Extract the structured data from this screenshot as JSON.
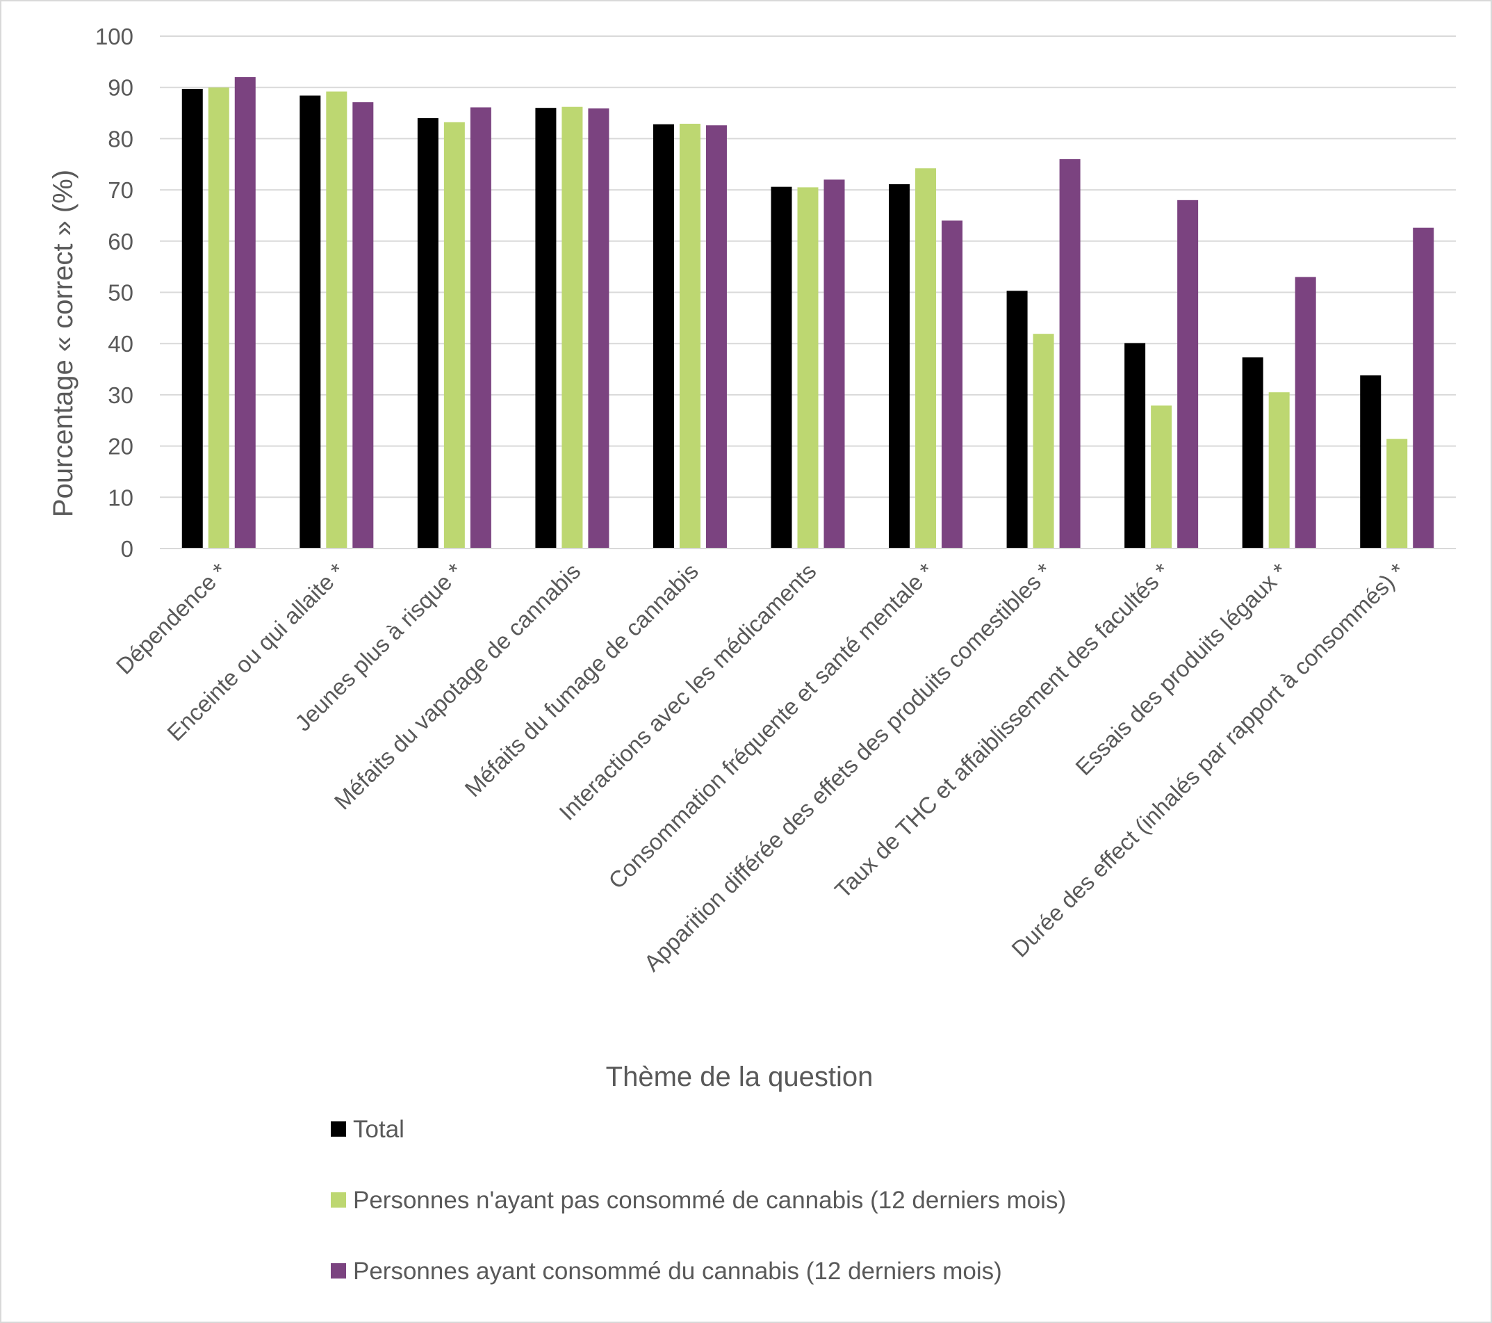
{
  "chart_data": {
    "type": "bar",
    "title": "",
    "xlabel": "Thème de la question",
    "ylabel": "Pourcentage « correct » (%)",
    "ylim": [
      0,
      100
    ],
    "yticks": [
      0,
      10,
      20,
      30,
      40,
      50,
      60,
      70,
      80,
      90,
      100
    ],
    "grid": true,
    "legend_position": "bottom",
    "categories": [
      "Dépendence *",
      "Enceinte ou qui allaite *",
      "Jeunes plus à risque *",
      "Méfaits du vapotage de cannabis",
      "Méfaits du fumage de cannabis",
      "Interactions avec les médicaments",
      "Consommation fréquente et santé mentale *",
      "Apparition différée des effets des produits comestibles *",
      "Taux de THC et affaiblissement des facultés *",
      "Essais des produits légaux *",
      "Durée des effect (inhalés par rapport à consommés) *"
    ],
    "series": [
      {
        "name": "Total",
        "color": "#000000",
        "values": [
          89.7,
          88.4,
          84.0,
          86.0,
          82.8,
          70.6,
          71.1,
          50.3,
          40.1,
          37.3,
          33.8
        ]
      },
      {
        "name": "Personnes n'ayant pas consommé de cannabis (12 derniers mois)",
        "color": "#BDD771",
        "values": [
          90.0,
          89.2,
          83.2,
          86.2,
          82.9,
          70.5,
          74.2,
          41.9,
          27.9,
          30.5,
          21.4
        ]
      },
      {
        "name": "Personnes ayant consommé du cannabis (12 derniers mois)",
        "color": "#7B4380",
        "values": [
          92.0,
          87.1,
          86.1,
          85.9,
          82.6,
          72.0,
          64.0,
          76.0,
          68.0,
          53.0,
          62.6
        ]
      }
    ]
  }
}
